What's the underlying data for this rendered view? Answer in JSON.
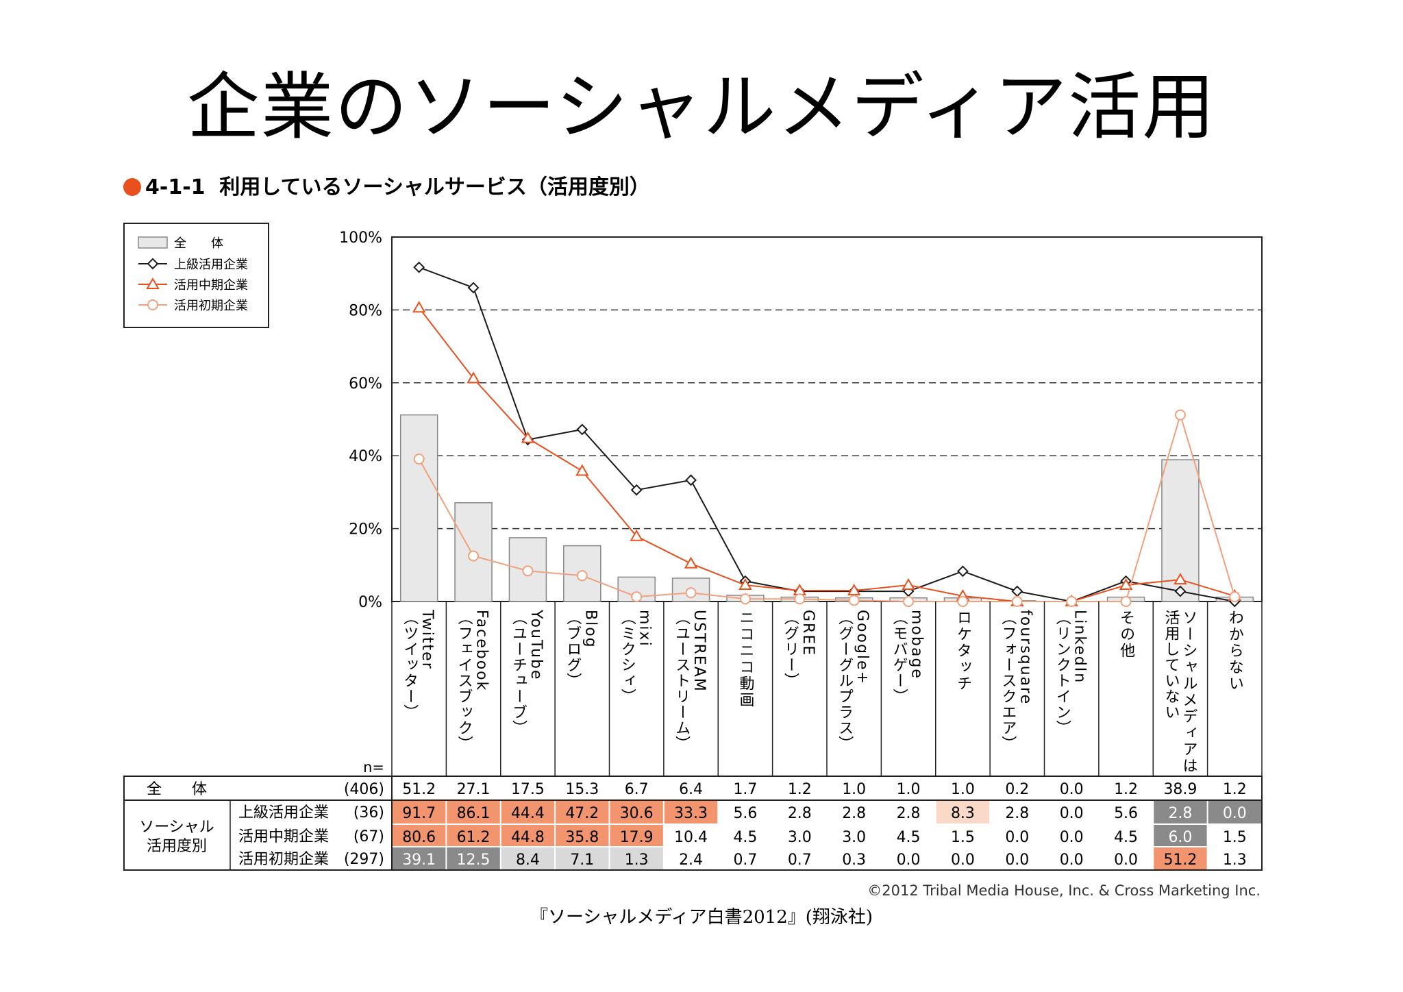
{
  "slide": {
    "title": "企業のソーシャルメディア活用"
  },
  "figure": {
    "number": "4-1-1",
    "caption": "利用しているソーシャルサービス（活用度別）",
    "copyright": "©2012 Tribal Media House, Inc. & Cross Marketing Inc.",
    "source": "『ソーシャルメディア白書2012』(翔泳社)"
  },
  "colors": {
    "bar_fill": "#e8e8e8",
    "advanced_line": "#1a1a1a",
    "middle_line": "#e8501e",
    "early_line": "#f0a07c",
    "cell_orange": "#f2956e",
    "cell_light_orange": "#fbd9c8",
    "cell_dark_gray": "#8a8a8a",
    "cell_light_gray": "#d9d9d9",
    "bullet": "#e8501e"
  },
  "chart_data": {
    "type": "bar+line",
    "title": "4-1-1 利用しているソーシャルサービス（活用度別）",
    "ylim": [
      0,
      100
    ],
    "yticks": [
      "0%",
      "20%",
      "40%",
      "60%",
      "80%",
      "100%"
    ],
    "ytick_values": [
      0,
      20,
      40,
      60,
      80,
      100
    ],
    "gridlines": "dashed",
    "categories": [
      "Twitter（ツイッター）",
      "Facebook（フェイスブック）",
      "YouTube（ユーチューブ）",
      "Blog（ブログ）",
      "mixi（ミクシィ）",
      "USTREAM（ユーストリーム）",
      "ニコニコ動画",
      "GREE（グリー）",
      "Google+（グーグルプラス）",
      "mobage（モバゲー）",
      "ロケタッチ",
      "foursquare（フォースクエア）",
      "LinkedIn（リンクトイン）",
      "その他",
      "ソーシャルメディアは活用していない",
      "わからない"
    ],
    "category_labels": [
      {
        "main": "Twitter",
        "sub": "（ツイッター）"
      },
      {
        "main": "Facebook",
        "sub": "（フェイスブック）"
      },
      {
        "main": "YouTube",
        "sub": "（ユーチューブ）"
      },
      {
        "main": "Blog",
        "sub": "（ブログ）"
      },
      {
        "main": "mixi",
        "sub": "（ミクシィ）"
      },
      {
        "main": "USTREAM",
        "sub": "（ユーストリーム）"
      },
      {
        "main": "ニコニコ動画",
        "sub": ""
      },
      {
        "main": "GREE",
        "sub": "（グリー）"
      },
      {
        "main": "Google+",
        "sub": "（グーグルプラス）"
      },
      {
        "main": "mobage",
        "sub": "（モバゲー）"
      },
      {
        "main": "ロケタッチ",
        "sub": ""
      },
      {
        "main": "foursquare",
        "sub": "（フォースクエア）"
      },
      {
        "main": "LinkedIn",
        "sub": "（リンクトイン）"
      },
      {
        "main": "その他",
        "sub": ""
      },
      {
        "main": "ソーシャルメディアは",
        "sub": "活用していない"
      },
      {
        "main": "わからない",
        "sub": ""
      }
    ],
    "series": [
      {
        "name": "全体",
        "n": "(406)",
        "kind": "bar",
        "values": [
          51.2,
          27.1,
          17.5,
          15.3,
          6.7,
          6.4,
          1.7,
          1.2,
          1.0,
          1.0,
          1.0,
          0.2,
          0.0,
          1.2,
          38.9,
          1.2
        ]
      },
      {
        "name": "上級活用企業",
        "n": "(36)",
        "kind": "line",
        "marker": "diamond",
        "values": [
          91.7,
          86.1,
          44.4,
          47.2,
          30.6,
          33.3,
          5.6,
          2.8,
          2.8,
          2.8,
          8.3,
          2.8,
          0.0,
          5.6,
          2.8,
          0.0
        ]
      },
      {
        "name": "活用中期企業",
        "n": "(67)",
        "kind": "line",
        "marker": "triangle",
        "values": [
          80.6,
          61.2,
          44.8,
          35.8,
          17.9,
          10.4,
          4.5,
          3.0,
          3.0,
          4.5,
          1.5,
          0.0,
          0.0,
          4.5,
          6.0,
          1.5
        ]
      },
      {
        "name": "活用初期企業",
        "n": "(297)",
        "kind": "line",
        "marker": "circle",
        "values": [
          39.1,
          12.5,
          8.4,
          7.1,
          1.3,
          2.4,
          0.7,
          0.7,
          0.3,
          0.0,
          0.0,
          0.0,
          0.0,
          0.0,
          51.2,
          1.3
        ]
      }
    ],
    "legend": {
      "placement": "top-left",
      "entries": [
        "全　　体",
        "上級活用企業",
        "活用中期企業",
        "活用初期企業"
      ]
    },
    "table": {
      "n_label": "n=",
      "total_label": "全　　体",
      "group_label_1": "ソーシャル",
      "group_label_2": "活用度別",
      "row_labels": [
        "上級活用企業",
        "活用中期企業",
        "活用初期企業"
      ],
      "value_texts": [
        [
          "51.2",
          "27.1",
          "17.5",
          "15.3",
          "6.7",
          "6.4",
          "1.7",
          "1.2",
          "1.0",
          "1.0",
          "1.0",
          "0.2",
          "0.0",
          "1.2",
          "38.9",
          "1.2"
        ],
        [
          "91.7",
          "86.1",
          "44.4",
          "47.2",
          "30.6",
          "33.3",
          "5.6",
          "2.8",
          "2.8",
          "2.8",
          "8.3",
          "2.8",
          "0.0",
          "5.6",
          "2.8",
          "0.0"
        ],
        [
          "80.6",
          "61.2",
          "44.8",
          "35.8",
          "17.9",
          "10.4",
          "4.5",
          "3.0",
          "3.0",
          "4.5",
          "1.5",
          "0.0",
          "0.0",
          "4.5",
          "6.0",
          "1.5"
        ],
        [
          "39.1",
          "12.5",
          "8.4",
          "7.1",
          "1.3",
          "2.4",
          "0.7",
          "0.7",
          "0.3",
          "0.0",
          "0.0",
          "0.0",
          "0.0",
          "0.0",
          "51.2",
          "1.3"
        ]
      ],
      "highlights": [
        [
          "",
          "",
          "",
          "",
          "",
          "",
          "",
          "",
          "",
          "",
          "",
          "",
          "",
          "",
          "",
          ""
        ],
        [
          "orange",
          "orange",
          "orange",
          "orange",
          "orange",
          "orange",
          "",
          "",
          "",
          "",
          "light-orange",
          "",
          "",
          "",
          "dark-gray",
          "dark-gray"
        ],
        [
          "orange",
          "orange",
          "orange",
          "orange",
          "orange",
          "",
          "",
          "",
          "",
          "",
          "",
          "",
          "",
          "",
          "dark-gray",
          ""
        ],
        [
          "dark-gray",
          "dark-gray",
          "light-gray",
          "light-gray",
          "light-gray",
          "",
          "",
          "",
          "",
          "",
          "",
          "",
          "",
          "",
          "orange",
          ""
        ]
      ]
    }
  }
}
